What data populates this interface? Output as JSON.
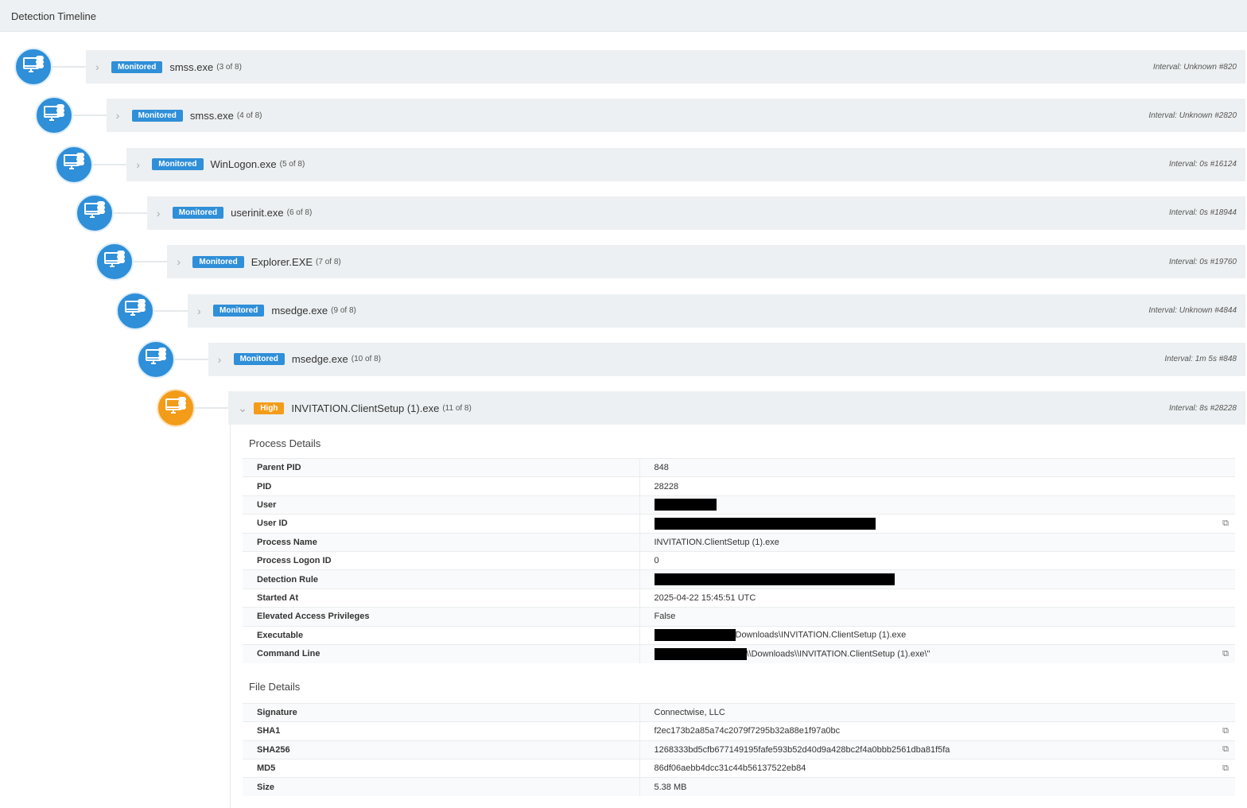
{
  "header": {
    "title": "Detection Timeline"
  },
  "colors": {
    "monitored": "#2f8fd8",
    "high": "#f39c1a"
  },
  "node_icon": "computer-process-icon",
  "timeline": [
    {
      "severity": "Monitored",
      "name": "smss.exe",
      "count": "(3 of 8)",
      "interval": "Interval: Unknown #820",
      "expanded": false
    },
    {
      "severity": "Monitored",
      "name": "smss.exe",
      "count": "(4 of 8)",
      "interval": "Interval: Unknown #2820",
      "expanded": false
    },
    {
      "severity": "Monitored",
      "name": "WinLogon.exe",
      "count": "(5 of 8)",
      "interval": "Interval: 0s #16124",
      "expanded": false
    },
    {
      "severity": "Monitored",
      "name": "userinit.exe",
      "count": "(6 of 8)",
      "interval": "Interval: 0s #18944",
      "expanded": false
    },
    {
      "severity": "Monitored",
      "name": "Explorer.EXE",
      "count": "(7 of 8)",
      "interval": "Interval: 0s #19760",
      "expanded": false
    },
    {
      "severity": "Monitored",
      "name": "msedge.exe",
      "count": "(9 of 8)",
      "interval": "Interval: Unknown #4844",
      "expanded": false
    },
    {
      "severity": "Monitored",
      "name": "msedge.exe",
      "count": "(10 of 8)",
      "interval": "Interval: 1m 5s #848",
      "expanded": false
    },
    {
      "severity": "High",
      "name": "INVITATION.ClientSetup (1).exe",
      "count": "(11 of 8)",
      "interval": "Interval: 8s #28228",
      "expanded": true
    }
  ],
  "process_details": {
    "title": "Process Details",
    "rows": [
      {
        "label": "Parent PID",
        "value": "848"
      },
      {
        "label": "PID",
        "value": "28228"
      },
      {
        "label": "User",
        "value": "",
        "redact": 78
      },
      {
        "label": "User ID",
        "value": "",
        "redact": 278,
        "copy": true
      },
      {
        "label": "Process Name",
        "value": "INVITATION.ClientSetup (1).exe"
      },
      {
        "label": "Process Logon ID",
        "value": "0"
      },
      {
        "label": "Detection Rule",
        "value": "",
        "redact": 302
      },
      {
        "label": "Started At",
        "value": "2025-04-22 15:45:51 UTC"
      },
      {
        "label": "Elevated Access Privileges",
        "value": "False"
      },
      {
        "label": "Executable",
        "value": "Downloads\\INVITATION.ClientSetup (1).exe",
        "redact": 102
      },
      {
        "label": "Command Line",
        "value": "\\\\Downloads\\\\INVITATION.ClientSetup (1).exe\\\"",
        "redact": 116,
        "copy": true
      }
    ]
  },
  "file_details": {
    "title": "File Details",
    "rows": [
      {
        "label": "Signature",
        "value": "Connectwise, LLC"
      },
      {
        "label": "SHA1",
        "value": "f2ec173b2a85a74c2079f7295b32a88e1f97a0bc",
        "copy": true
      },
      {
        "label": "SHA256",
        "value": "1268333bd5cfb677149195fafe593b52d40d9a428bc2f4a0bbb2561dba81f5fa",
        "copy": true
      },
      {
        "label": "MD5",
        "value": "86df06aebb4dcc31c44b56137522eb84",
        "copy": true
      },
      {
        "label": "Size",
        "value": "5.38 MB"
      }
    ]
  }
}
